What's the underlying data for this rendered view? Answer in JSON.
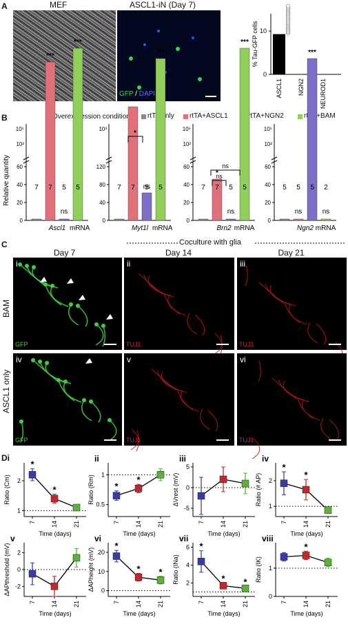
{
  "panel_labels": {
    "A": "A",
    "B": "B",
    "C": "C",
    "D": "Di"
  },
  "panelA": {
    "image_titles": [
      "MEF",
      "ASCL1-iN (Day 7)"
    ],
    "overlay_gfp": "GFP",
    "overlay_sep": " / ",
    "overlay_dapi": "DAPI",
    "chart_ylabel": "% Tau-GFP cells",
    "chart_categories": [
      "ASCL1",
      "NGN2",
      "NEUROD1"
    ],
    "chart_values": [
      9.3,
      0.05,
      0.05
    ],
    "chart_yticks": [
      "0",
      "10"
    ]
  },
  "panelB": {
    "legend_prefix": "Overexpression conditions:",
    "legend": [
      "rtTA only",
      "rtTA+ASCL1",
      "rtTA+NGN2",
      "rtTA+BAM"
    ],
    "colors": [
      "#8a8a8a",
      "#e0707a",
      "#7b6fc9",
      "#8fcf5a"
    ],
    "ylabel": "Relative quantity",
    "genes": [
      {
        "gene": "Ascl1",
        "suffix": " mRNA",
        "n": [
          "7",
          "7",
          "5",
          "5"
        ],
        "sig": [
          "",
          "***",
          "ns",
          "***"
        ]
      },
      {
        "gene": "Myt1l",
        "suffix": " mRNA",
        "n": [
          "7",
          "7",
          "5",
          "5"
        ],
        "sig": [
          "",
          "**",
          "ns",
          "***"
        ]
      },
      {
        "gene": "Brn2",
        "suffix": " mRNA",
        "n": [
          "7",
          "7",
          "5",
          "5"
        ],
        "sig": [
          "",
          "*",
          "ns",
          "***"
        ]
      },
      {
        "gene": "Ngn2",
        "suffix": " mRNA",
        "n": [
          "5",
          "5",
          "5",
          "2"
        ],
        "sig": [
          "",
          "ns",
          "***",
          "ns"
        ]
      }
    ],
    "bracket_labels": [
      "*",
      "ns",
      "ns"
    ]
  },
  "panelC": {
    "coculture": "Coculture with glia",
    "days": [
      "Day 7",
      "Day 14",
      "Day 21"
    ],
    "rows": [
      "BAM",
      "ASCL1 only"
    ],
    "subpanels": [
      "i",
      "ii",
      "iii",
      "iv",
      "v",
      "vi"
    ],
    "stains": [
      "GFP",
      "TUJ1",
      "TUJ1",
      "GFP",
      "TUJ1",
      "TUJ1"
    ]
  },
  "panelD": {
    "xlabel": "Time (days)",
    "xticks": [
      "7",
      "14",
      "21"
    ],
    "series_colors": [
      "#3a3aa8",
      "#c0282d",
      "#5db13a"
    ],
    "plots": [
      {
        "label": "Di",
        "ylabel": "Ratio (Cm)",
        "yticks": [
          "1",
          "2"
        ],
        "ylim": [
          0.8,
          2.6
        ],
        "ref": 1,
        "values": [
          2.2,
          1.4,
          1.1
        ],
        "err": [
          0.2,
          0.15,
          0.08
        ],
        "stars": [
          "*",
          "*",
          ""
        ]
      },
      {
        "label": "ii",
        "ylabel": "Ratio (Rm)",
        "yticks": [
          "0.5",
          "1"
        ],
        "ylim": [
          0.3,
          1.2
        ],
        "ref": 1,
        "values": [
          0.65,
          0.77,
          1.0
        ],
        "err": [
          0.08,
          0.07,
          0.1
        ],
        "stars": [
          "*",
          "*",
          ""
        ]
      },
      {
        "label": "iii",
        "ylabel": "ΔVrest (mV)",
        "yticks": [
          "-5",
          "0",
          "5"
        ],
        "ylim": [
          -7,
          6
        ],
        "ref": 0,
        "values": [
          -2,
          2,
          1
        ],
        "err": [
          4.5,
          3,
          2.5
        ],
        "stars": [
          "",
          "",
          ""
        ]
      },
      {
        "label": "iv",
        "ylabel": "Ratio (# AP)",
        "yticks": [
          "1",
          "2"
        ],
        "ylim": [
          0.6,
          2.7
        ],
        "ref": 1,
        "values": [
          1.9,
          1.65,
          0.85
        ],
        "err": [
          0.45,
          0.4,
          0.1
        ],
        "stars": [
          "*",
          "*",
          ""
        ]
      },
      {
        "label": "v",
        "ylabel": "ΔAPthreshold (mV)",
        "yticks": [
          "-2",
          "0",
          "2"
        ],
        "ylim": [
          -3.2,
          3.2
        ],
        "ref": 0,
        "values": [
          -0.5,
          -2,
          1.4
        ],
        "err": [
          1.3,
          1.2,
          1.1
        ],
        "stars": [
          "",
          "",
          ""
        ]
      },
      {
        "label": "vi",
        "ylabel": "ΔAPheight (mV)",
        "yticks": [
          "0",
          "10",
          "20"
        ],
        "ylim": [
          -3,
          25
        ],
        "ref": 0,
        "values": [
          18,
          7,
          5.5
        ],
        "err": [
          3,
          2,
          2
        ],
        "stars": [
          "*",
          "*",
          "*"
        ]
      },
      {
        "label": "vii",
        "ylabel": "Ratio (INa)",
        "yticks": [
          "2",
          "4",
          "6"
        ],
        "ylim": [
          0.5,
          6.5
        ],
        "ref": 1,
        "values": [
          4.4,
          1.7,
          1.4
        ],
        "err": [
          1.2,
          0.3,
          0.2
        ],
        "stars": [
          "*",
          "*",
          "*"
        ]
      },
      {
        "label": "viii",
        "ylabel": "Ratio (IK)",
        "yticks": [
          "0",
          "1"
        ],
        "ylim": [
          0,
          1.9
        ],
        "ref": 1,
        "values": [
          1.4,
          1.45,
          1.2
        ],
        "err": [
          0.15,
          0.15,
          0.15
        ],
        "stars": [
          "",
          "*",
          ""
        ]
      }
    ]
  }
}
